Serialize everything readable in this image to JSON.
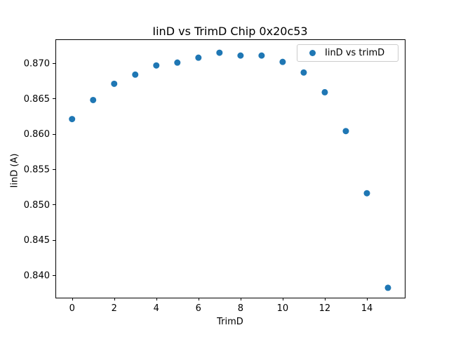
{
  "chart_data": {
    "type": "scatter",
    "title": "IinD vs TrimD Chip 0x20c53",
    "xlabel": "TrimD",
    "ylabel": "IinD (A)",
    "legend": {
      "label": "IinD vs trimD",
      "position": "upper right"
    },
    "marker_color": "#1f77b4",
    "x": [
      0,
      1,
      2,
      3,
      4,
      5,
      6,
      7,
      8,
      9,
      10,
      11,
      12,
      13,
      14,
      15
    ],
    "y": [
      0.8621,
      0.8648,
      0.8671,
      0.8684,
      0.8697,
      0.8701,
      0.8708,
      0.8715,
      0.8711,
      0.8711,
      0.8702,
      0.8687,
      0.8659,
      0.8604,
      0.8516,
      0.8382
    ],
    "xlim": [
      -0.79,
      15.8
    ],
    "ylim": [
      0.8368,
      0.8734
    ],
    "xtick_values": [
      0,
      2,
      4,
      6,
      8,
      10,
      12,
      14
    ],
    "xtick_labels": [
      "0",
      "2",
      "4",
      "6",
      "8",
      "10",
      "12",
      "14"
    ],
    "ytick_values": [
      0.84,
      0.845,
      0.85,
      0.855,
      0.86,
      0.865,
      0.87
    ],
    "ytick_labels": [
      "0.840",
      "0.845",
      "0.850",
      "0.855",
      "0.860",
      "0.865",
      "0.870"
    ],
    "grid": false,
    "axis_color": "#000000"
  }
}
